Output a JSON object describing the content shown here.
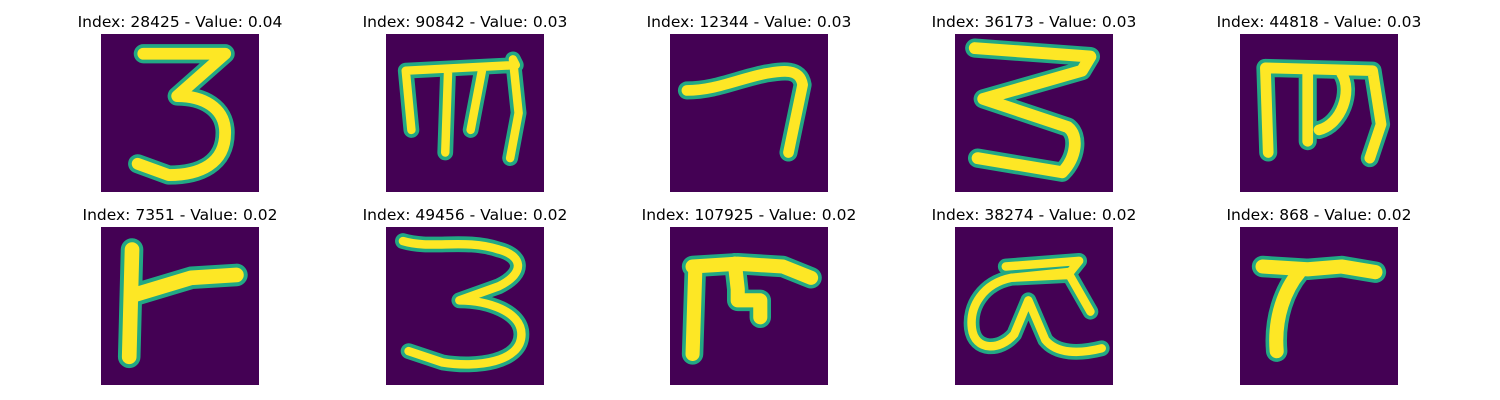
{
  "figure": {
    "background": "#440154",
    "stroke_outer": "#22a884",
    "stroke_inner": "#fde725",
    "panels": [
      {
        "title": "Index: 28425 - Value: 0.04",
        "glyph": "three-digit-glyph"
      },
      {
        "title": "Index: 90842 - Value: 0.03",
        "glyph": "m-shaped-glyph"
      },
      {
        "title": "Index: 12344 - Value: 0.03",
        "glyph": "seven-shaped-glyph"
      },
      {
        "title": "Index: 36173 - Value: 0.03",
        "glyph": "zigzag-three-glyph"
      },
      {
        "title": "Index: 44818 - Value: 0.03",
        "glyph": "m-shaped-glyph"
      },
      {
        "title": "Index: 7351 - Value: 0.02",
        "glyph": "t-bar-glyph"
      },
      {
        "title": "Index: 49456 - Value: 0.02",
        "glyph": "wavy-three-glyph"
      },
      {
        "title": "Index: 107925 - Value: 0.02",
        "glyph": "pi-shaped-glyph"
      },
      {
        "title": "Index: 38274 - Value: 0.02",
        "glyph": "alpha-shaped-glyph"
      },
      {
        "title": "Index: 868 - Value: 0.02",
        "glyph": "r-shaped-glyph"
      }
    ]
  }
}
